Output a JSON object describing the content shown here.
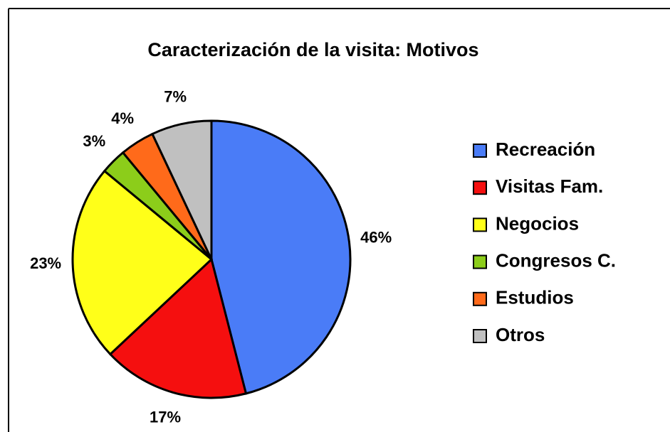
{
  "chart_data": {
    "type": "pie",
    "title": "Caracterización de la visita: Motivos",
    "categories": [
      "Recreación",
      "Visitas Fam.",
      "Negocios",
      "Congresos C.",
      "Estudios",
      "Otros"
    ],
    "values": [
      46,
      17,
      23,
      3,
      4,
      7
    ],
    "value_labels": [
      "46%",
      "17%",
      "23%",
      "3%",
      "4%",
      "7%"
    ],
    "colors": [
      "#4a7cf7",
      "#f50f0f",
      "#ffff19",
      "#8ccd1a",
      "#ff6a1a",
      "#c0c0c0"
    ],
    "legend": "right"
  }
}
